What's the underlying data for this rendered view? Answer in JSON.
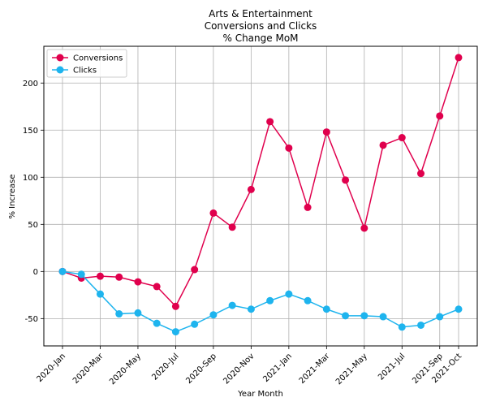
{
  "chart_data": {
    "type": "line",
    "title": [
      "Arts & Entertainment",
      "Conversions and Clicks",
      "% Change MoM"
    ],
    "xlabel": "Year Month",
    "ylabel": "% Increase",
    "x": [
      "2020-Jan",
      "2020-Feb",
      "2020-Mar",
      "2020-Apr",
      "2020-May",
      "2020-Jun",
      "2020-Jul",
      "2020-Aug",
      "2020-Sep",
      "2020-Oct",
      "2020-Nov",
      "2020-Dec",
      "2021-Jan",
      "2021-Feb",
      "2021-Mar",
      "2021-Apr",
      "2021-May",
      "2021-Jun",
      "2021-Jul",
      "2021-Aug",
      "2021-Sep",
      "2021-Oct"
    ],
    "xtick_labels": [
      "2020-Jan",
      "2020-Mar",
      "2020-May",
      "2020-Jul",
      "2020-Sep",
      "2020-Nov",
      "2021-Jan",
      "2021-Mar",
      "2021-May",
      "2021-Jul",
      "2021-Sep",
      "2021-Oct"
    ],
    "xtick_indices": [
      0,
      2,
      4,
      6,
      8,
      10,
      12,
      14,
      16,
      18,
      20,
      21
    ],
    "yticks": [
      -50,
      0,
      50,
      100,
      150,
      200
    ],
    "ylim": [
      -79,
      239
    ],
    "grid": true,
    "legend_position": "upper-left",
    "series": [
      {
        "name": "Conversions",
        "color": "#e0004d",
        "values": [
          0,
          -7,
          -5,
          -6,
          -11,
          -16,
          -37,
          2,
          62,
          47,
          87,
          159,
          131,
          68,
          148,
          97,
          46,
          134,
          142,
          104,
          165,
          227
        ]
      },
      {
        "name": "Clicks",
        "color": "#1eb4ee",
        "values": [
          0,
          -3,
          -24,
          -45,
          -44,
          -55,
          -64,
          -56,
          -46,
          -36,
          -40,
          -31,
          -24,
          -31,
          -40,
          -47,
          -47,
          -48,
          -59,
          -57,
          -48,
          -40
        ]
      }
    ]
  }
}
